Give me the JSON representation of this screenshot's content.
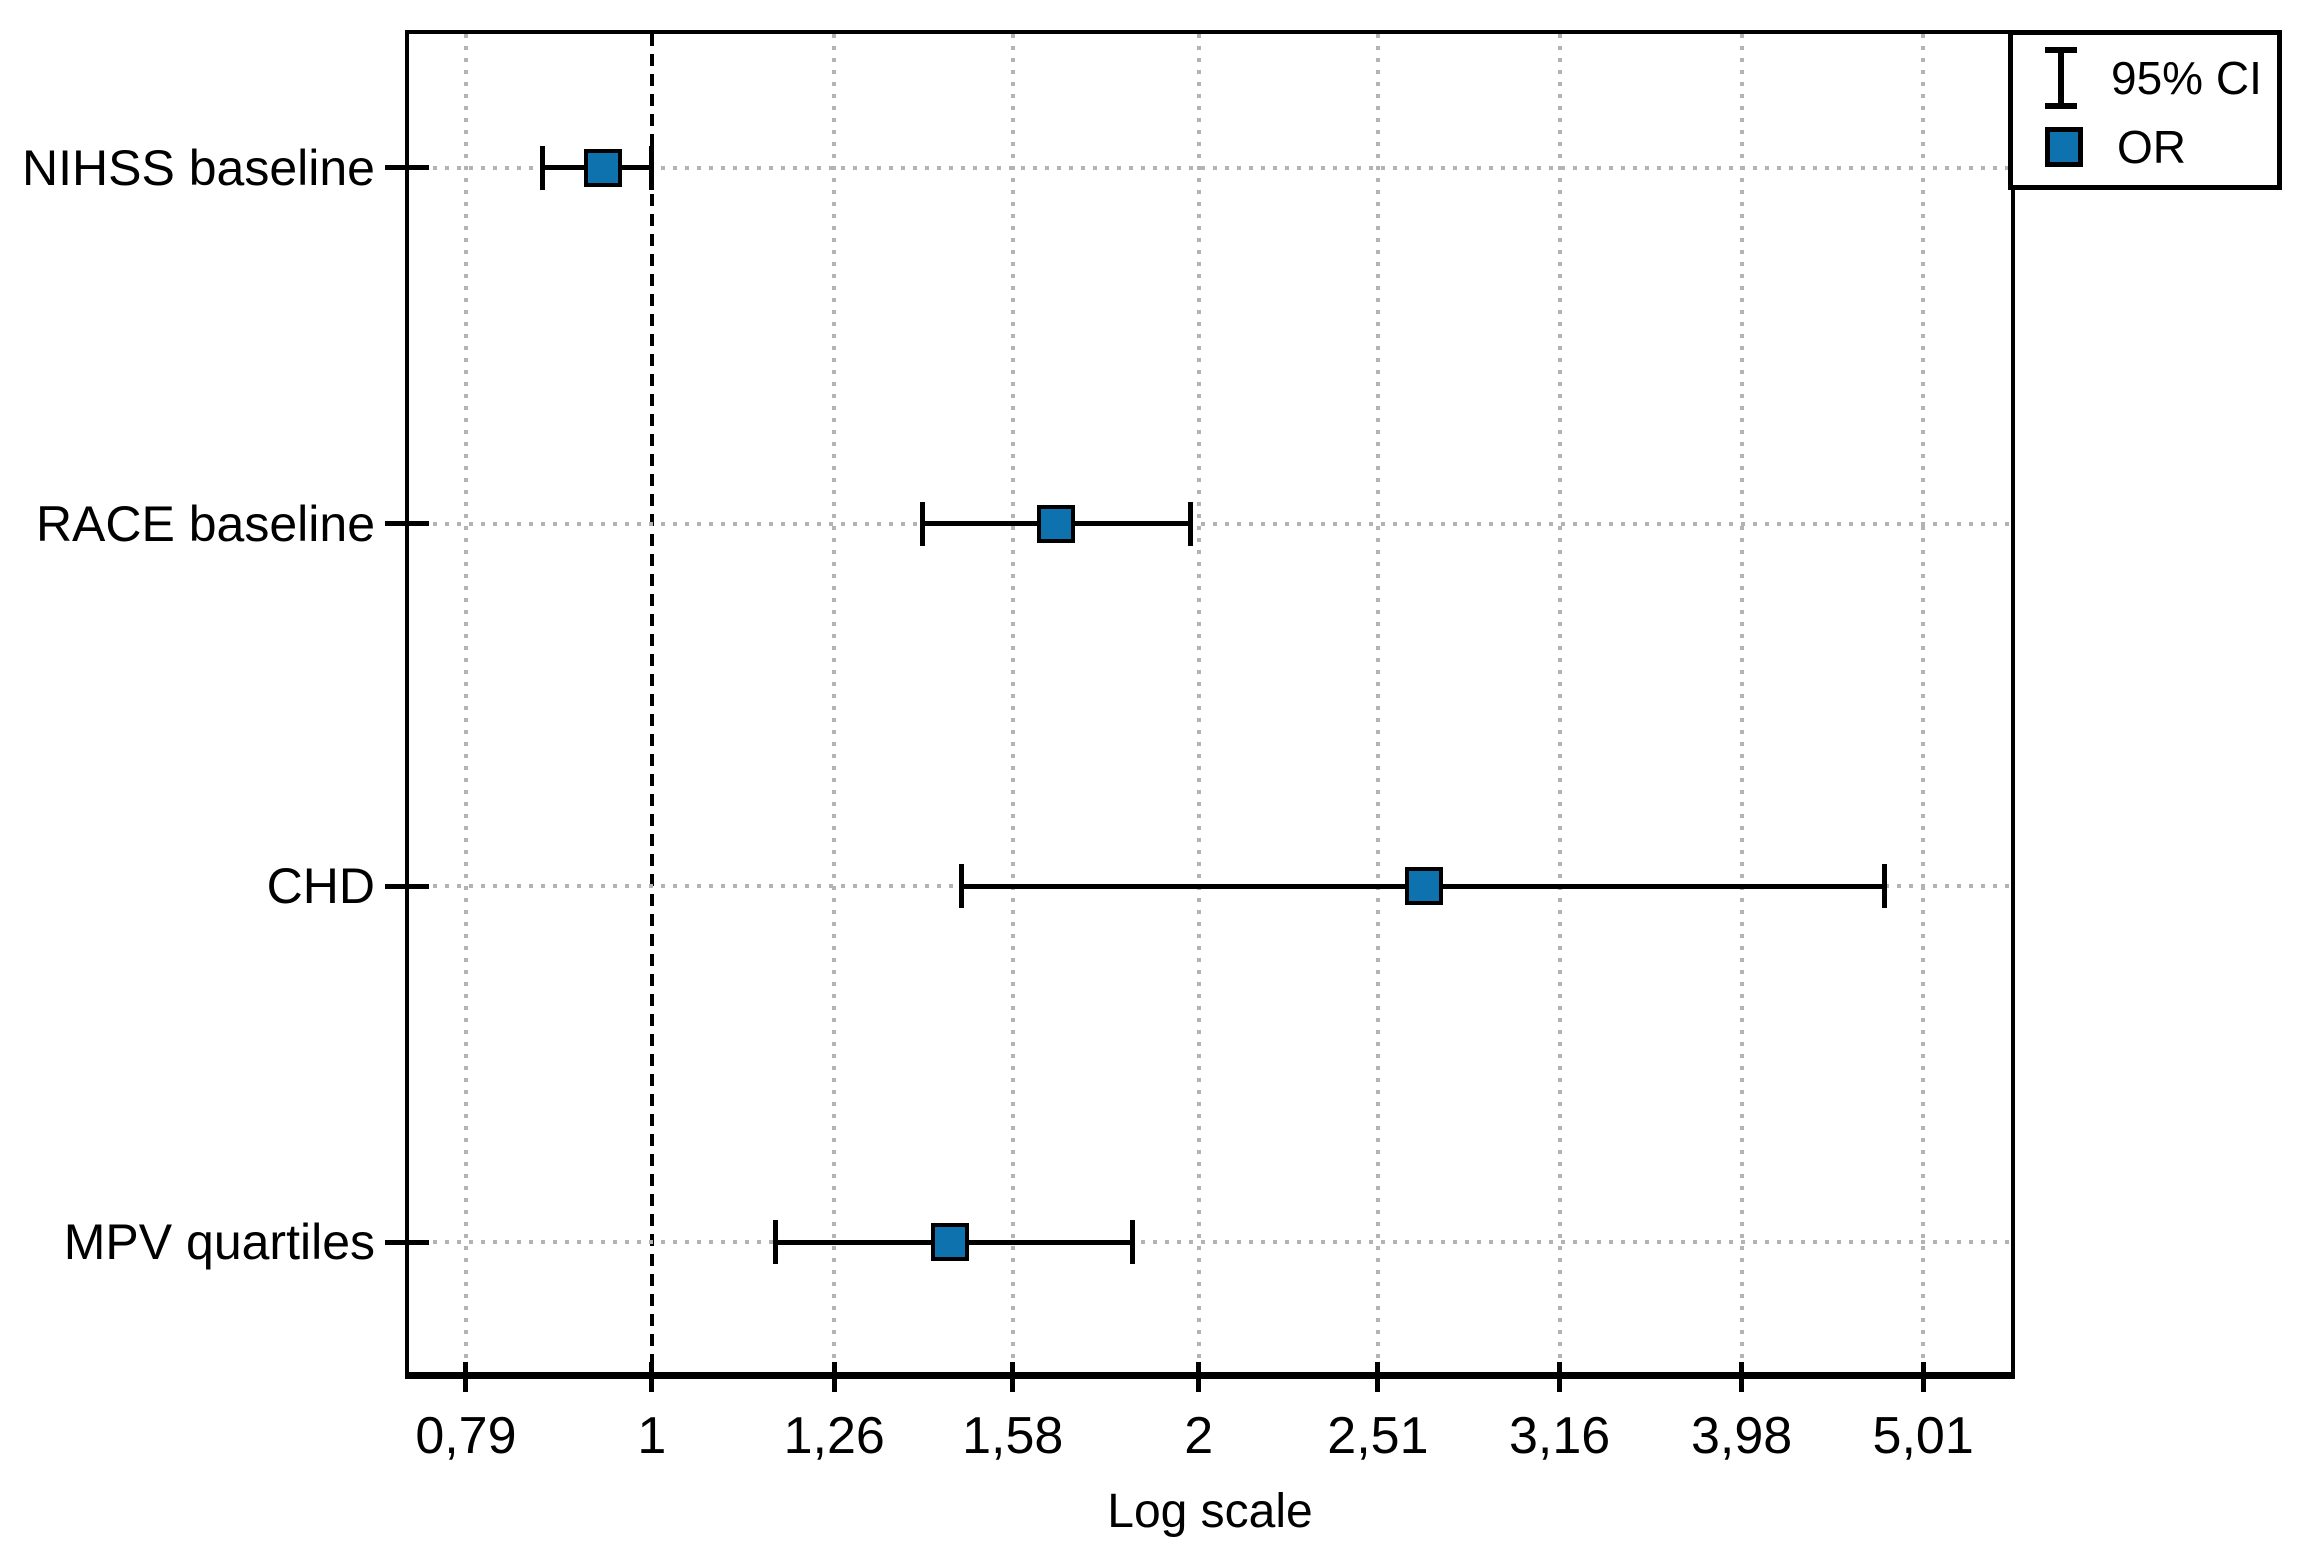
{
  "chart_data": {
    "type": "scatter",
    "variant": "forest-plot-horizontal-error-bars",
    "title": "",
    "xlabel": "Log scale",
    "ylabel": "",
    "x_scale": "log10",
    "x_range": [
      0.735,
      5.6
    ],
    "x_ticks": [
      {
        "value": 0.79,
        "label": "0,79"
      },
      {
        "value": 1,
        "label": "1"
      },
      {
        "value": 1.26,
        "label": "1,26"
      },
      {
        "value": 1.58,
        "label": "1,58"
      },
      {
        "value": 2,
        "label": "2"
      },
      {
        "value": 2.51,
        "label": "2,51"
      },
      {
        "value": 3.16,
        "label": "3,16"
      },
      {
        "value": 3.98,
        "label": "3,98"
      },
      {
        "value": 5.01,
        "label": "5,01"
      }
    ],
    "reference_line": {
      "value": 1,
      "style": "dashed",
      "color": "#000000"
    },
    "grid": {
      "show": true,
      "style": "dotted",
      "color": "#b3b3b3"
    },
    "categories": [
      "NIHSS baseline",
      "RACE baseline",
      "CHD",
      "MPV quartiles"
    ],
    "series": [
      {
        "name": "OR",
        "marker": "square",
        "color": "#0d72ad",
        "points": [
          {
            "category": "NIHSS baseline",
            "or": 0.94,
            "ci95_low": 0.87,
            "ci95_high": 1.0
          },
          {
            "category": "RACE baseline",
            "or": 1.67,
            "ci95_low": 1.41,
            "ci95_high": 1.98
          },
          {
            "category": "CHD",
            "or": 2.66,
            "ci95_low": 1.48,
            "ci95_high": 4.77
          },
          {
            "category": "MPV quartiles",
            "or": 1.46,
            "ci95_low": 1.17,
            "ci95_high": 1.84
          }
        ]
      }
    ],
    "legend": {
      "position": "top-right",
      "items": [
        {
          "icon": "error-bar-icon",
          "label": "95% CI"
        },
        {
          "icon": "or-square-icon",
          "label": "OR"
        }
      ]
    },
    "colors": {
      "marker_fill": "#0d72ad",
      "marker_border": "#000000",
      "axis": "#000000",
      "gridline": "#b3b3b3",
      "text": "#000000",
      "background": "#ffffff"
    }
  }
}
